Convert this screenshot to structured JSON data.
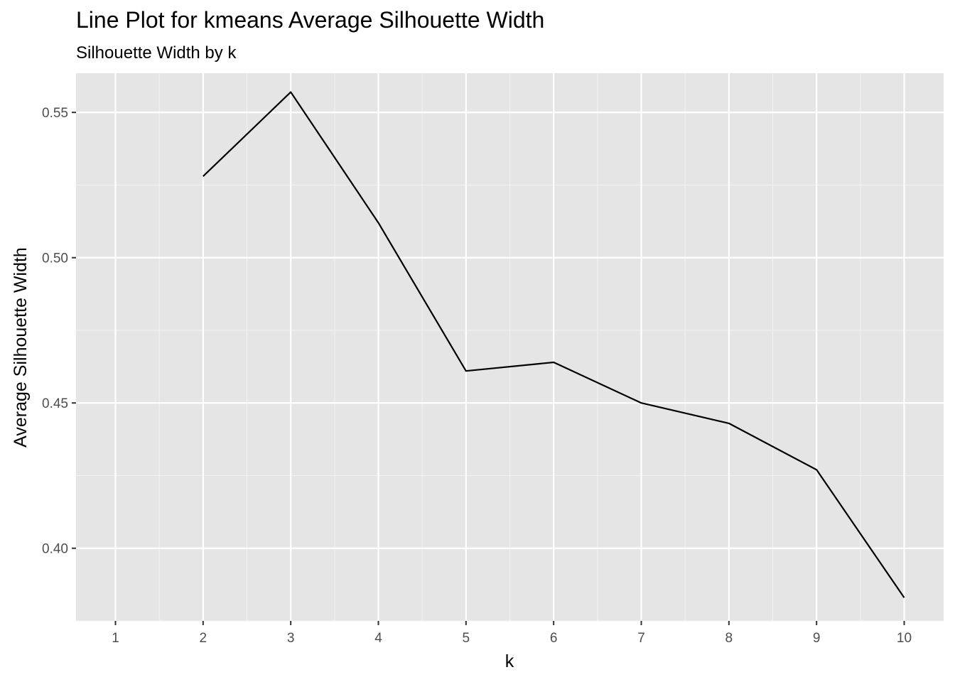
{
  "chart_data": {
    "type": "line",
    "title": "Line Plot for kmeans Average Silhouette Width",
    "subtitle": "Silhouette Width by k",
    "xlabel": "k",
    "ylabel": "Average Silhouette Width",
    "x": [
      2,
      3,
      4,
      5,
      6,
      7,
      8,
      9,
      10
    ],
    "series": [
      {
        "values": [
          0.528,
          0.557,
          0.512,
          0.461,
          0.464,
          0.45,
          0.443,
          0.427,
          0.383
        ]
      }
    ],
    "xlim": [
      0.55,
      10.45
    ],
    "ylim": [
      0.375,
      0.5635
    ],
    "x_ticks": [
      1,
      2,
      3,
      4,
      5,
      6,
      7,
      8,
      9,
      10
    ],
    "x_tick_labels": [
      "1",
      "2",
      "3",
      "4",
      "5",
      "6",
      "7",
      "8",
      "9",
      "10"
    ],
    "y_ticks": [
      0.4,
      0.45,
      0.5,
      0.55
    ],
    "y_tick_labels": [
      "0.40",
      "0.45",
      "0.50",
      "0.55"
    ],
    "grid": true,
    "legend": "none",
    "colors": {
      "panel_background": "#E5E5E5",
      "grid_major": "#FFFFFF",
      "grid_minor": "#F2F2F2",
      "line": "#000000",
      "tick_label": "#4D4D4D",
      "tick_mark": "#333333"
    }
  }
}
